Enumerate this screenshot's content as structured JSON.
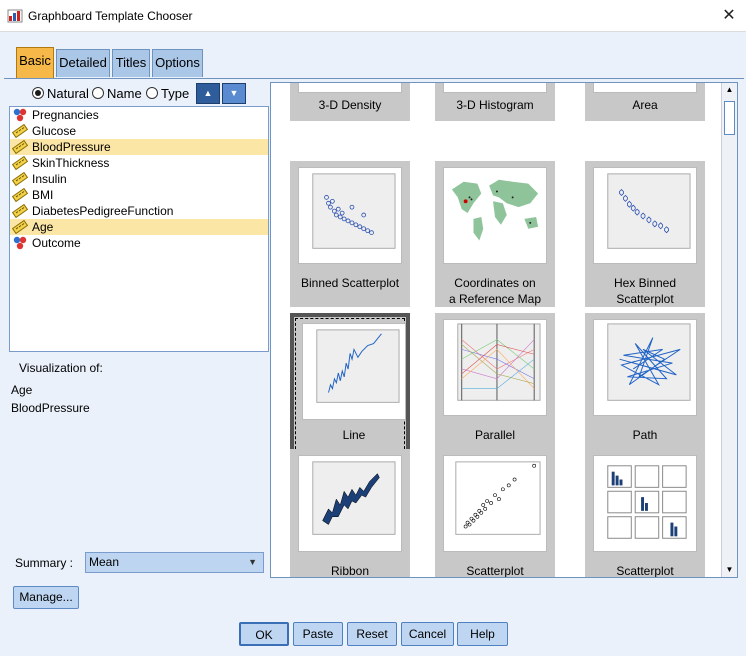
{
  "window": {
    "title": "Graphboard Template Chooser",
    "close": "✕"
  },
  "tabs": [
    {
      "label": "Basic",
      "active": true
    },
    {
      "label": "Detailed",
      "active": false
    },
    {
      "label": "Titles",
      "active": false
    },
    {
      "label": "Options",
      "active": false
    }
  ],
  "sort": {
    "natural": "Natural",
    "name": "Name",
    "type": "Type",
    "selected": "Natural"
  },
  "variables": [
    {
      "name": "Pregnancies",
      "type": "nominal",
      "selected": false
    },
    {
      "name": "Glucose",
      "type": "scale",
      "selected": false
    },
    {
      "name": "BloodPressure",
      "type": "scale",
      "selected": true
    },
    {
      "name": "SkinThickness",
      "type": "scale",
      "selected": false
    },
    {
      "name": "Insulin",
      "type": "scale",
      "selected": false
    },
    {
      "name": "BMI",
      "type": "scale",
      "selected": false
    },
    {
      "name": "DiabetesPedigreeFunction",
      "type": "scale",
      "selected": false
    },
    {
      "name": "Age",
      "type": "scale",
      "selected": true
    },
    {
      "name": "Outcome",
      "type": "nominal",
      "selected": false
    }
  ],
  "visualization": {
    "label": "Visualization of:",
    "vars": [
      "Age",
      "BloodPressure"
    ]
  },
  "summary": {
    "label": "Summary :",
    "value": "Mean"
  },
  "manage": "Manage...",
  "templates": [
    {
      "cap1": "3-D Density",
      "cap2": "",
      "selected": false
    },
    {
      "cap1": "3-D Histogram",
      "cap2": "",
      "selected": false
    },
    {
      "cap1": "Area",
      "cap2": "",
      "selected": false
    },
    {
      "cap1": "Binned Scatterplot",
      "cap2": "",
      "selected": false
    },
    {
      "cap1": "Coordinates on",
      "cap2": "a Reference Map",
      "selected": false
    },
    {
      "cap1": "Hex Binned",
      "cap2": "Scatterplot",
      "selected": false
    },
    {
      "cap1": "Line",
      "cap2": "",
      "selected": true
    },
    {
      "cap1": "Parallel",
      "cap2": "",
      "selected": false
    },
    {
      "cap1": "Path",
      "cap2": "",
      "selected": false
    },
    {
      "cap1": "Ribbon",
      "cap2": "",
      "selected": false
    },
    {
      "cap1": "Scatterplot",
      "cap2": "",
      "selected": false
    },
    {
      "cap1": "Scatterplot",
      "cap2": "",
      "selected": false
    }
  ],
  "buttons": {
    "ok": "OK",
    "paste": "Paste",
    "reset": "Reset",
    "cancel": "Cancel",
    "help": "Help"
  }
}
